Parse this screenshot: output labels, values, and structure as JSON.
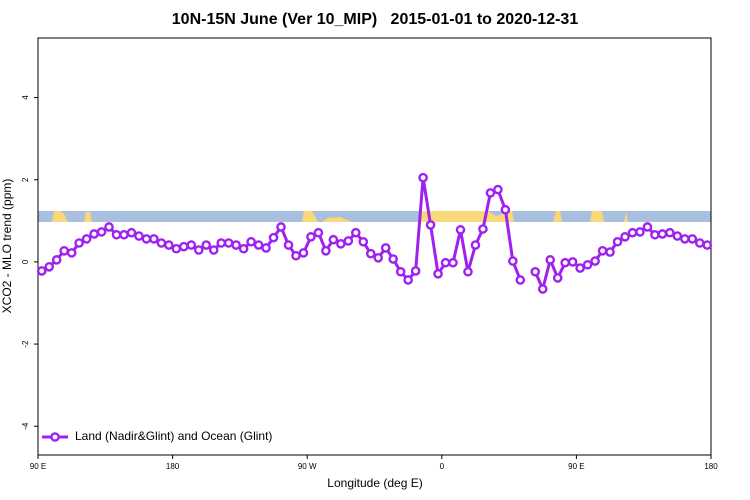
{
  "chart_data": {
    "type": "line",
    "title": "10N-15N June (Ver 10_MIP)   2015-01-01 to 2020-12-31",
    "x_label": "Longitude (deg E)",
    "y_label": "XCO2 - MLO trend (ppm)",
    "x": [
      92.5,
      97.5,
      102.5,
      107.5,
      112.5,
      117.5,
      122.5,
      127.5,
      132.5,
      137.5,
      142.5,
      147.5,
      152.5,
      157.5,
      162.5,
      167.5,
      172.5,
      177.5,
      182.5,
      187.5,
      192.5,
      197.5,
      202.5,
      207.5,
      212.5,
      217.5,
      222.5,
      227.5,
      232.5,
      237.5,
      242.5,
      247.5,
      252.5,
      257.5,
      262.5,
      267.5,
      272.5,
      277.5,
      282.5,
      287.5,
      292.5,
      297.5,
      302.5,
      307.5,
      312.5,
      317.5,
      322.5,
      327.5,
      332.5,
      337.5,
      342.5,
      347.5,
      352.5,
      357.5,
      362.5,
      367.5,
      372.5,
      377.5,
      382.5,
      387.5,
      392.5,
      397.5,
      402.5,
      407.5,
      412.5,
      417.5,
      422.5,
      427.5,
      432.5,
      437.5,
      442.5,
      447.5,
      452.5,
      457.5,
      462.5,
      467.5,
      472.5,
      477.5,
      482.5,
      487.5,
      492.5,
      497.5,
      502.5,
      507.5,
      512.5,
      517.5,
      522.5,
      527.5,
      532.5,
      537.5
    ],
    "series": [
      {
        "name": "Land (Nadir&Glint) and Ocean (Glint)",
        "color": "#a020f0",
        "values": [
          -0.22,
          -0.12,
          0.05,
          0.27,
          0.22,
          0.46,
          0.56,
          0.68,
          0.73,
          0.85,
          0.66,
          0.66,
          0.71,
          0.63,
          0.56,
          0.56,
          0.46,
          0.41,
          0.32,
          0.37,
          0.41,
          0.29,
          0.41,
          0.29,
          0.46,
          0.46,
          0.41,
          0.32,
          0.49,
          0.41,
          0.34,
          0.59,
          0.85,
          0.41,
          0.15,
          0.22,
          0.61,
          0.71,
          0.27,
          0.54,
          0.44,
          0.51,
          0.71,
          0.49,
          0.2,
          0.1,
          0.34,
          0.07,
          -0.24,
          -0.44,
          -0.22,
          2.05,
          0.9,
          -0.29,
          -0.02,
          -0.02,
          0.78,
          -0.24,
          0.41,
          0.8,
          1.68,
          1.76,
          1.27,
          0.02,
          -0.44,
          null,
          -0.24,
          -0.66,
          0.05,
          -0.39,
          -0.02,
          0.0,
          -0.15,
          -0.07,
          0.02,
          0.27,
          0.24,
          0.49,
          0.61,
          0.71,
          0.73,
          0.85,
          0.66,
          0.68,
          0.71,
          0.63,
          0.56,
          0.56,
          0.46,
          0.41
        ]
      }
    ],
    "xlim": [
      90,
      540
    ],
    "xticks": [
      {
        "value": 90,
        "label": "90 E"
      },
      180,
      {
        "value": 270,
        "label": "90 W"
      },
      {
        "value": 360,
        "label": "0"
      },
      {
        "value": 450,
        "label": "90 E"
      },
      {
        "value": 540,
        "label": "180"
      }
    ],
    "ylim": [
      -4.7,
      5.45
    ],
    "yticks": [
      -4,
      -2,
      0,
      2,
      4
    ],
    "legend": "bottom-left"
  }
}
